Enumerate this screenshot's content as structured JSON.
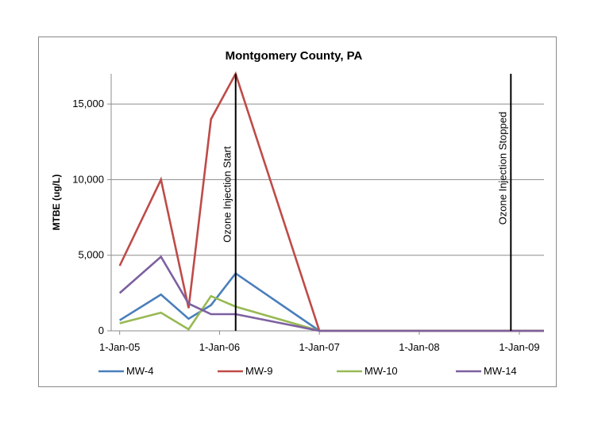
{
  "chart_data": {
    "type": "line",
    "title": "Montgomery County, PA",
    "ylabel": "MTBE (ug/L)",
    "xlabel": "",
    "ylim": [
      0,
      17000
    ],
    "xlim": [
      "2004-12-01",
      "2009-04-01"
    ],
    "yticks": [
      0,
      5000,
      10000,
      15000
    ],
    "ytick_labels": [
      "0",
      "5,000",
      "10,000",
      "15,000"
    ],
    "xticks": [
      "2005-01-01",
      "2006-01-01",
      "2007-01-01",
      "2008-01-01",
      "2009-01-01"
    ],
    "xtick_labels": [
      "1-Jan-05",
      "1-Jan-06",
      "1-Jan-07",
      "1-Jan-08",
      "1-Jan-09"
    ],
    "grid": "horizontal",
    "legend": "bottom",
    "series": [
      {
        "name": "MW-4",
        "color": "#4a7ebb",
        "x": [
          "2005-01-01",
          "2005-06-01",
          "2005-09-10",
          "2005-12-01",
          "2006-03-01",
          "2007-01-01",
          "2009-04-01"
        ],
        "values": [
          700,
          2400,
          800,
          1700,
          3800,
          0,
          0
        ]
      },
      {
        "name": "MW-9",
        "color": "#be4b48",
        "x": [
          "2005-01-01",
          "2005-06-01",
          "2005-09-10",
          "2005-12-01",
          "2006-03-01",
          "2007-01-01",
          "2009-04-01"
        ],
        "values": [
          4300,
          10000,
          1500,
          14000,
          17000,
          0,
          0
        ]
      },
      {
        "name": "MW-10",
        "color": "#98b954",
        "x": [
          "2005-01-01",
          "2005-06-01",
          "2005-09-10",
          "2005-12-01",
          "2006-03-01",
          "2007-01-01",
          "2009-04-01"
        ],
        "values": [
          500,
          1200,
          100,
          2300,
          1600,
          0,
          0
        ]
      },
      {
        "name": "MW-14",
        "color": "#7d60a0",
        "x": [
          "2005-01-01",
          "2005-06-01",
          "2005-09-10",
          "2005-12-01",
          "2006-03-01",
          "2007-01-01",
          "2009-04-01"
        ],
        "values": [
          2500,
          4900,
          1800,
          1100,
          1100,
          0,
          0
        ]
      }
    ],
    "annotations": [
      {
        "text": "Ozone Injection Start",
        "x": "2006-03-01"
      },
      {
        "text": "Ozone Injection Stopped",
        "x": "2008-12-01"
      }
    ]
  }
}
